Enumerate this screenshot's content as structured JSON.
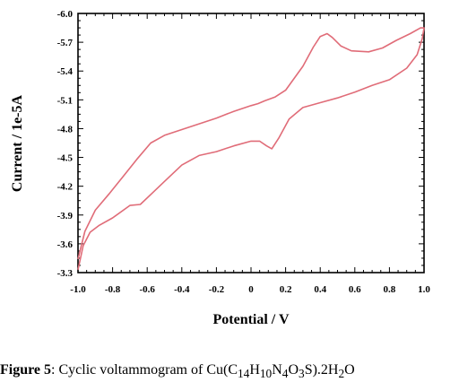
{
  "chart_data": {
    "type": "line",
    "xlabel": "Potential / V",
    "ylabel": "Current / 1e-5A",
    "xlim": [
      -1.0,
      1.0
    ],
    "ylim": [
      -3.3,
      -6.0
    ],
    "y_inverted": true,
    "grid": false,
    "line_color": "#e06c78",
    "x_ticks": [
      "-1.0",
      "-0.8",
      "-0.6",
      "-0.4",
      "-0.2",
      "0",
      "0.2",
      "0.4",
      "0.6",
      "0.8",
      "1.0"
    ],
    "y_ticks": [
      "-6.0",
      "-5.7",
      "-5.4",
      "-5.1",
      "-4.8",
      "-4.5",
      "-4.2",
      "-3.9",
      "-3.6",
      "-3.3"
    ],
    "series": [
      {
        "values": [
          [
            -1.0,
            -3.33
          ],
          [
            -0.97,
            -3.58
          ],
          [
            -0.93,
            -3.72
          ],
          [
            -0.88,
            -3.79
          ],
          [
            -0.8,
            -3.87
          ],
          [
            -0.7,
            -4.0
          ],
          [
            -0.64,
            -4.01
          ],
          [
            -0.57,
            -4.13
          ],
          [
            -0.5,
            -4.25
          ],
          [
            -0.4,
            -4.42
          ],
          [
            -0.3,
            -4.52
          ],
          [
            -0.2,
            -4.56
          ],
          [
            -0.1,
            -4.62
          ],
          [
            0.0,
            -4.67
          ],
          [
            0.05,
            -4.67
          ],
          [
            0.09,
            -4.62
          ],
          [
            0.12,
            -4.59
          ],
          [
            0.16,
            -4.7
          ],
          [
            0.22,
            -4.9
          ],
          [
            0.3,
            -5.02
          ],
          [
            0.4,
            -5.07
          ],
          [
            0.5,
            -5.12
          ],
          [
            0.6,
            -5.18
          ],
          [
            0.7,
            -5.25
          ],
          [
            0.8,
            -5.31
          ],
          [
            0.9,
            -5.43
          ],
          [
            0.96,
            -5.57
          ],
          [
            0.99,
            -5.74
          ],
          [
            1.0,
            -5.85
          ],
          [
            0.98,
            -5.85
          ],
          [
            0.92,
            -5.79
          ],
          [
            0.84,
            -5.72
          ],
          [
            0.76,
            -5.64
          ],
          [
            0.68,
            -5.6
          ],
          [
            0.58,
            -5.61
          ],
          [
            0.52,
            -5.66
          ],
          [
            0.47,
            -5.75
          ],
          [
            0.44,
            -5.79
          ],
          [
            0.4,
            -5.76
          ],
          [
            0.36,
            -5.65
          ],
          [
            0.3,
            -5.45
          ],
          [
            0.2,
            -5.2
          ],
          [
            0.14,
            -5.13
          ],
          [
            0.08,
            -5.09
          ],
          [
            0.04,
            -5.06
          ],
          [
            0.0,
            -5.04
          ],
          [
            -0.1,
            -4.98
          ],
          [
            -0.2,
            -4.91
          ],
          [
            -0.3,
            -4.85
          ],
          [
            -0.4,
            -4.79
          ],
          [
            -0.5,
            -4.73
          ],
          [
            -0.58,
            -4.65
          ],
          [
            -0.66,
            -4.48
          ],
          [
            -0.74,
            -4.3
          ],
          [
            -0.82,
            -4.12
          ],
          [
            -0.9,
            -3.95
          ],
          [
            -0.96,
            -3.73
          ],
          [
            -1.0,
            -3.44
          ]
        ]
      }
    ]
  },
  "caption": {
    "lead": "Figure 5",
    "text": ": Cyclic voltammogram of Cu(C",
    "sub1": "14",
    "t2": "H",
    "sub2": "10",
    "t3": "N",
    "sub3": "4",
    "t4": "O",
    "sub4": "3",
    "t5": "S).2H",
    "sub5": "2",
    "t6": "O"
  }
}
